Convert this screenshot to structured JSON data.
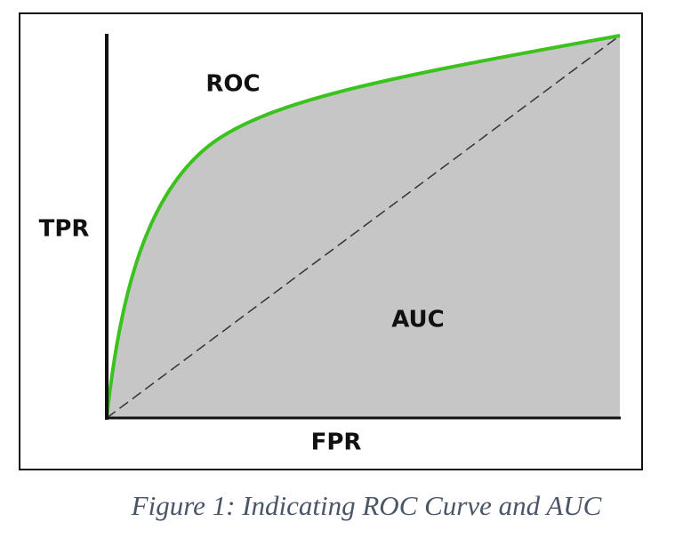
{
  "diagram": {
    "curve_label": "ROC",
    "area_label": "AUC",
    "y_axis_label": "TPR",
    "x_axis_label": "FPR"
  },
  "caption": "Figure 1: Indicating ROC Curve and AUC"
}
